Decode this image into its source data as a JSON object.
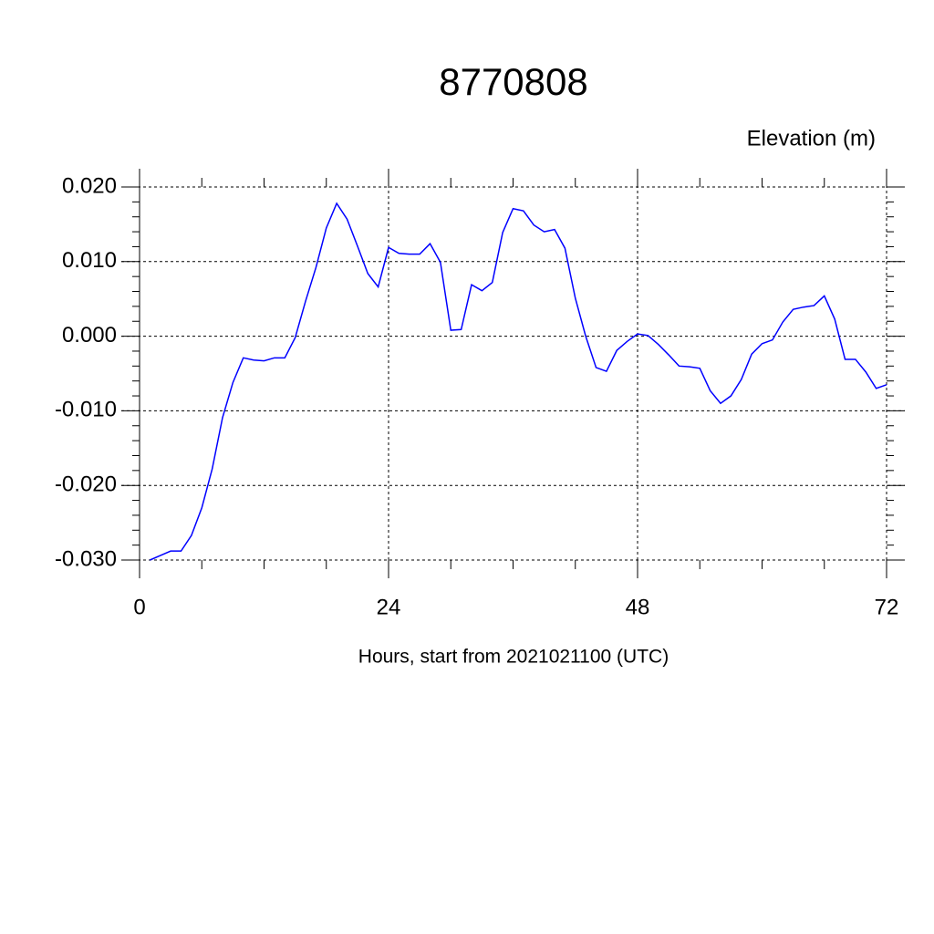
{
  "chart_data": {
    "type": "line",
    "title": "8770808",
    "y_label": "Elevation (m)",
    "x_label": "Hours, start from 2021021100 (UTC)",
    "x": [
      1,
      2,
      3,
      4,
      5,
      6,
      7,
      8,
      9,
      10,
      11,
      12,
      13,
      14,
      15,
      16,
      17,
      18,
      19,
      20,
      21,
      22,
      23,
      24,
      25,
      26,
      27,
      28,
      29,
      30,
      31,
      32,
      33,
      34,
      35,
      36,
      37,
      38,
      39,
      40,
      41,
      42,
      43,
      44,
      45,
      46,
      47,
      48,
      49,
      50,
      51,
      52,
      53,
      54,
      55,
      56,
      57,
      58,
      59,
      60,
      61,
      62,
      63,
      64,
      65,
      66,
      67,
      68,
      69,
      70,
      71,
      72
    ],
    "series": [
      {
        "name": "Elevation",
        "color": "#0000ff",
        "values": [
          -0.03,
          -0.0294,
          -0.0288,
          -0.0288,
          -0.0267,
          -0.023,
          -0.0178,
          -0.0109,
          -0.0062,
          -0.0029,
          -0.0032,
          -0.0033,
          -0.0029,
          -0.0029,
          -0.0002,
          0.0047,
          0.0092,
          0.0145,
          0.0178,
          0.0157,
          0.0121,
          0.0084,
          0.0066,
          0.0119,
          0.0111,
          0.011,
          0.011,
          0.0124,
          0.0099,
          0.0008,
          0.0009,
          0.0069,
          0.0061,
          0.0072,
          0.0139,
          0.0171,
          0.0168,
          0.0149,
          0.014,
          0.0143,
          0.0118,
          0.0051,
          0.0,
          -0.0042,
          -0.0047,
          -0.0019,
          -0.0007,
          0.0003,
          0.0001,
          -0.0011,
          -0.0025,
          -0.004,
          -0.0041,
          -0.0043,
          -0.0073,
          -0.009,
          -0.008,
          -0.0058,
          -0.0024,
          -0.001,
          -0.0005,
          0.0019,
          0.0036,
          0.0039,
          0.0041,
          0.0054,
          0.0023,
          -0.0031,
          -0.0031,
          -0.0048,
          -0.007,
          -0.0065
        ]
      }
    ],
    "xlim": [
      0,
      72
    ],
    "xticks": [
      0,
      24,
      48,
      72
    ],
    "ylim": [
      -0.03,
      0.02
    ],
    "yticks": [
      {
        "value": -0.03,
        "label": "-0.030"
      },
      {
        "value": -0.02,
        "label": "-0.020"
      },
      {
        "value": -0.01,
        "label": "-0.010"
      },
      {
        "value": 0,
        "label": "0.000"
      },
      {
        "value": 0.01,
        "label": "0.010"
      },
      {
        "value": 0.02,
        "label": "0.020"
      }
    ],
    "grid": true
  }
}
